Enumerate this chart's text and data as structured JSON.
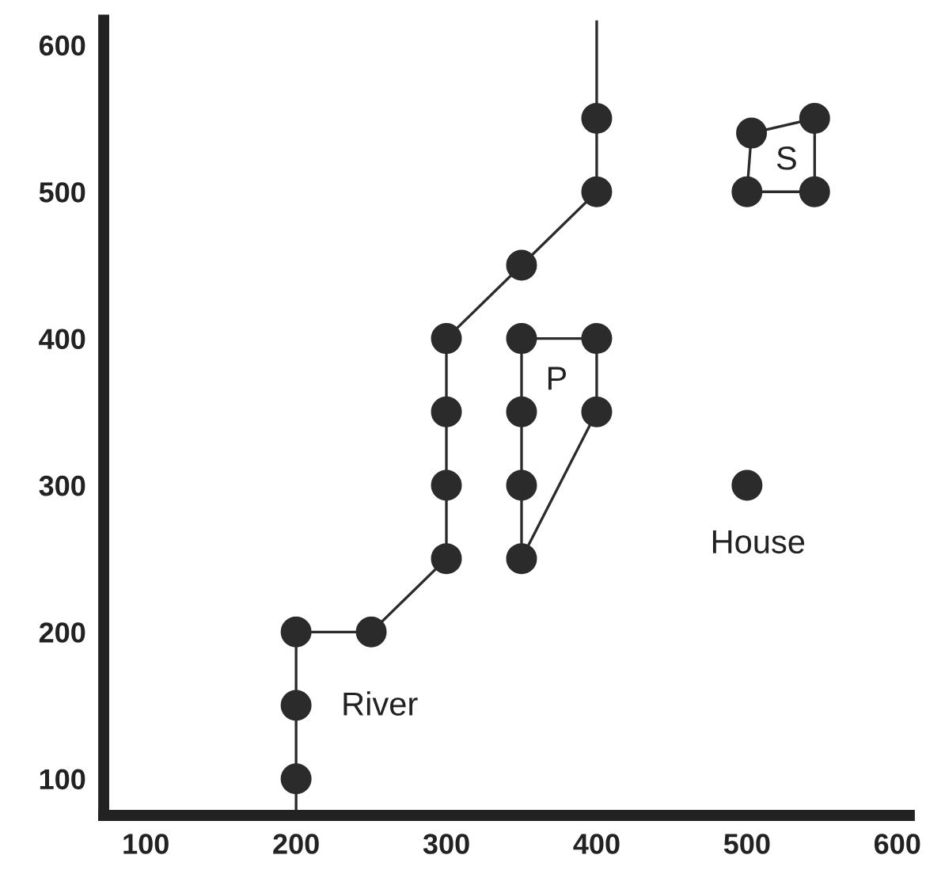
{
  "chart_data": {
    "type": "line",
    "xlim": [
      72,
      608
    ],
    "ylim": [
      75,
      617
    ],
    "xticks": [
      100,
      200,
      300,
      400,
      500,
      600
    ],
    "yticks": [
      100,
      200,
      300,
      400,
      500,
      600
    ],
    "grid": false,
    "legend": false,
    "marker": "circle",
    "line_style": "solid",
    "series": [
      {
        "marker": "none",
        "color": "#2b2b2b",
        "x": [
          200,
          200,
          200,
          200,
          250,
          300,
          300,
          300,
          300,
          350,
          400,
          400,
          400
        ],
        "values": [
          75,
          100,
          150,
          200,
          200,
          250,
          300,
          350,
          400,
          450,
          500,
          550,
          616
        ]
      },
      {
        "type": "scatter",
        "name": "River",
        "color": "#2b2b2b",
        "x": [
          200,
          200,
          200,
          250,
          300,
          300,
          300,
          300,
          350,
          400,
          400
        ],
        "values": [
          100,
          150,
          200,
          200,
          250,
          300,
          350,
          400,
          450,
          500,
          550
        ]
      },
      {
        "marker": "none",
        "color": "#2b2b2b",
        "x": [
          350,
          350,
          350,
          350,
          400
        ],
        "values": [
          250,
          300,
          350,
          400,
          400
        ]
      },
      {
        "marker": "none",
        "color": "#2b2b2b",
        "x": [
          350,
          400,
          400
        ],
        "values": [
          250,
          350,
          400
        ]
      },
      {
        "type": "scatter",
        "name": "P",
        "color": "#2b2b2b",
        "x": [
          350,
          350,
          350,
          350,
          400,
          400
        ],
        "values": [
          250,
          300,
          350,
          400,
          400,
          350
        ]
      },
      {
        "marker": "none",
        "color": "#2b2b2b",
        "x": [
          500,
          503,
          545
        ],
        "values": [
          500,
          540,
          550
        ]
      },
      {
        "marker": "none",
        "color": "#2b2b2b",
        "x": [
          500,
          545,
          545
        ],
        "values": [
          500,
          500,
          550
        ]
      },
      {
        "type": "scatter",
        "name": "S",
        "color": "#2b2b2b",
        "x": [
          500,
          503,
          545,
          545
        ],
        "values": [
          500,
          540,
          550,
          500
        ]
      },
      {
        "type": "scatter",
        "name": "House",
        "color": "#2b2b2b",
        "x": [
          500
        ],
        "values": [
          300
        ]
      }
    ]
  }
}
